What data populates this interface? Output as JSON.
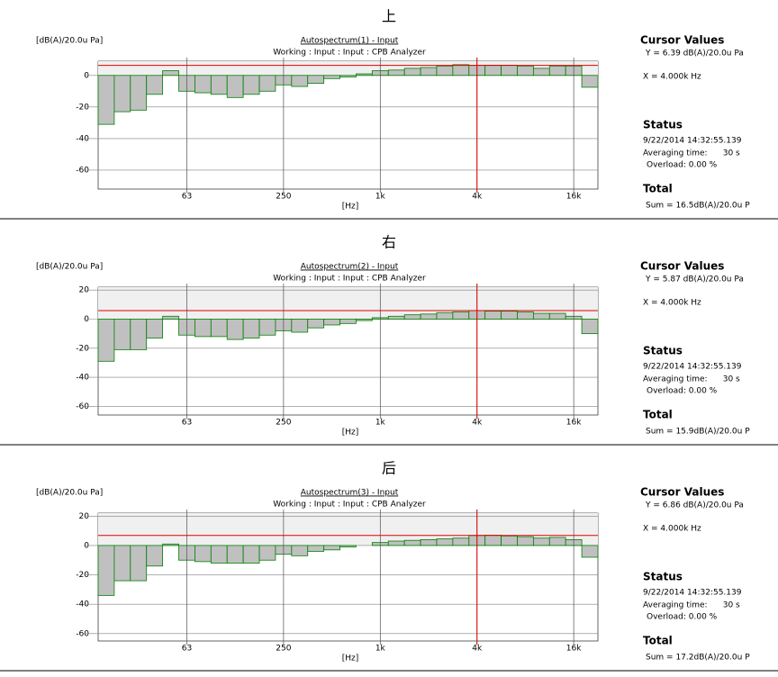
{
  "chart_data": [
    {
      "type": "bar",
      "title": "Autospectrum(1) - Input",
      "subtitle": "Working : Input : Input : CPB Analyzer",
      "y_label": "[dB(A)/20.0u Pa]",
      "x_label": "[Hz]",
      "categories": [
        null,
        null,
        null,
        null,
        null,
        "63",
        null,
        null,
        null,
        null,
        null,
        "250",
        null,
        null,
        null,
        null,
        null,
        "1k",
        null,
        null,
        null,
        null,
        null,
        "4k",
        null,
        null,
        null,
        null,
        null,
        "16k",
        null
      ],
      "values": [
        -31,
        -23,
        -22,
        -12,
        3,
        -10,
        -11,
        -12,
        -14,
        -12,
        -10,
        -6,
        -7,
        -5,
        -2,
        -1,
        1,
        3,
        3.4,
        4.5,
        5,
        6,
        6.8,
        6.39,
        6.5,
        6.5,
        6,
        4.5,
        6,
        6,
        -7.5
      ],
      "ylim": [
        -72,
        9
      ],
      "yticks": [
        0,
        -20,
        -40,
        -60
      ],
      "cursor_index": 23,
      "cursor_value": 6.39,
      "color": "#c0c0c0",
      "edge_color": "#008000",
      "cursor_color": "#e00000"
    },
    {
      "type": "bar",
      "title": "Autospectrum(2) - Input",
      "subtitle": "Working : Input : Input : CPB Analyzer",
      "y_label": "[dB(A)/20.0u Pa]",
      "x_label": "[Hz]",
      "categories": [
        null,
        null,
        null,
        null,
        null,
        "63",
        null,
        null,
        null,
        null,
        null,
        "250",
        null,
        null,
        null,
        null,
        null,
        "1k",
        null,
        null,
        null,
        null,
        null,
        "4k",
        null,
        null,
        null,
        null,
        null,
        "16k",
        null
      ],
      "values": [
        -29,
        -21,
        -21,
        -13,
        2,
        -11,
        -12,
        -12,
        -14,
        -13,
        -11,
        -8,
        -9,
        -6,
        -4,
        -3,
        -1,
        1,
        2,
        3,
        3.5,
        4.5,
        5,
        5.87,
        5.5,
        5.5,
        5,
        4,
        4,
        2,
        -10
      ],
      "ylim": [
        -66,
        22
      ],
      "yticks": [
        20,
        0,
        -20,
        -40,
        -60
      ],
      "cursor_index": 23,
      "cursor_value": 5.87,
      "color": "#c0c0c0",
      "edge_color": "#008000",
      "cursor_color": "#e00000"
    },
    {
      "type": "bar",
      "title": "Autospectrum(3) - Input",
      "subtitle": "Working : Input : Input : CPB Analyzer",
      "y_label": "[dB(A)/20.0u Pa]",
      "x_label": "[Hz]",
      "categories": [
        null,
        null,
        null,
        null,
        null,
        "63",
        null,
        null,
        null,
        null,
        null,
        "250",
        null,
        null,
        null,
        null,
        null,
        "1k",
        null,
        null,
        null,
        null,
        null,
        "4k",
        null,
        null,
        null,
        null,
        null,
        "16k",
        null
      ],
      "values": [
        -34,
        -24,
        -24,
        -14,
        1,
        -10,
        -11,
        -12,
        -12,
        -12,
        -10,
        -6,
        -7,
        -4,
        -3,
        -1,
        0,
        2,
        3,
        3.5,
        4,
        4.5,
        5,
        6.86,
        7,
        6.5,
        6,
        5,
        5.5,
        4,
        -8
      ],
      "ylim": [
        -65,
        22
      ],
      "yticks": [
        20,
        0,
        -20,
        -40,
        -60
      ],
      "cursor_index": 23,
      "cursor_value": 6.86,
      "color": "#c0c0c0",
      "edge_color": "#008000",
      "cursor_color": "#e00000"
    }
  ],
  "panels": [
    {
      "heading": "上",
      "cursor_title": "Cursor Values",
      "cursor_y": "Y = 6.39 dB(A)/20.0u Pa",
      "cursor_x": "X = 4.000k Hz",
      "status_title": "Status",
      "date": "9/22/2014  14:32:55.139",
      "averaging": "Averaging time:      30 s",
      "overload": "Overload: 0.00 %",
      "total_title": "Total",
      "sum": "Sum = 16.5dB(A)/20.0u P"
    },
    {
      "heading": "右",
      "cursor_title": "Cursor Values",
      "cursor_y": "Y = 5.87 dB(A)/20.0u Pa",
      "cursor_x": "X = 4.000k Hz",
      "status_title": "Status",
      "date": "9/22/2014  14:32:55.139",
      "averaging": "Averaging time:      30 s",
      "overload": "Overload: 0.00 %",
      "total_title": "Total",
      "sum": "Sum = 15.9dB(A)/20.0u P"
    },
    {
      "heading": "后",
      "cursor_title": "Cursor Values",
      "cursor_y": "Y = 6.86 dB(A)/20.0u Pa",
      "cursor_x": "X = 4.000k Hz",
      "status_title": "Status",
      "date": "9/22/2014  14:32:55.139",
      "averaging": "Averaging time:      30 s",
      "overload": "Overload: 0.00 %",
      "total_title": "Total",
      "sum": "Sum = 17.2dB(A)/20.0u P"
    }
  ]
}
